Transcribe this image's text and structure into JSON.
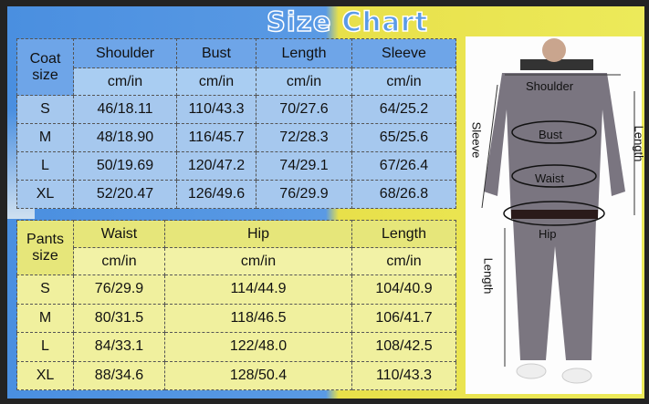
{
  "title": "Size Chart",
  "coat": {
    "size_label": "Coat size",
    "headers": [
      "Shoulder",
      "Bust",
      "Length",
      "Sleeve"
    ],
    "unit": "cm/in",
    "rows": [
      [
        "S",
        "46/18.11",
        "110/43.3",
        "70/27.6",
        "64/25.2"
      ],
      [
        "M",
        "48/18.90",
        "116/45.7",
        "72/28.3",
        "65/25.6"
      ],
      [
        "L",
        "50/19.69",
        "120/47.2",
        "74/29.1",
        "67/26.4"
      ],
      [
        "XL",
        "52/20.47",
        "126/49.6",
        "76/29.9",
        "68/26.8"
      ]
    ]
  },
  "pants": {
    "size_label": "Pants size",
    "headers": [
      "Waist",
      "Hip",
      "Length"
    ],
    "unit": "cm/in",
    "rows": [
      [
        "S",
        "76/29.9",
        "114/44.9",
        "104/40.9"
      ],
      [
        "M",
        "80/31.5",
        "118/46.5",
        "106/41.7"
      ],
      [
        "L",
        "84/33.1",
        "122/48.0",
        "108/42.5"
      ],
      [
        "XL",
        "88/34.6",
        "128/50.4",
        "110/43.3"
      ]
    ]
  },
  "figure": {
    "shoulder": "Shoulder",
    "bust": "Bust",
    "waist": "Waist",
    "hip": "Hip",
    "sleeve": "Sleeve",
    "coat_length": "Length",
    "pants_length": "Length"
  },
  "colors": {
    "blue": "#4a8fe0",
    "yellow": "#e8e04a"
  }
}
